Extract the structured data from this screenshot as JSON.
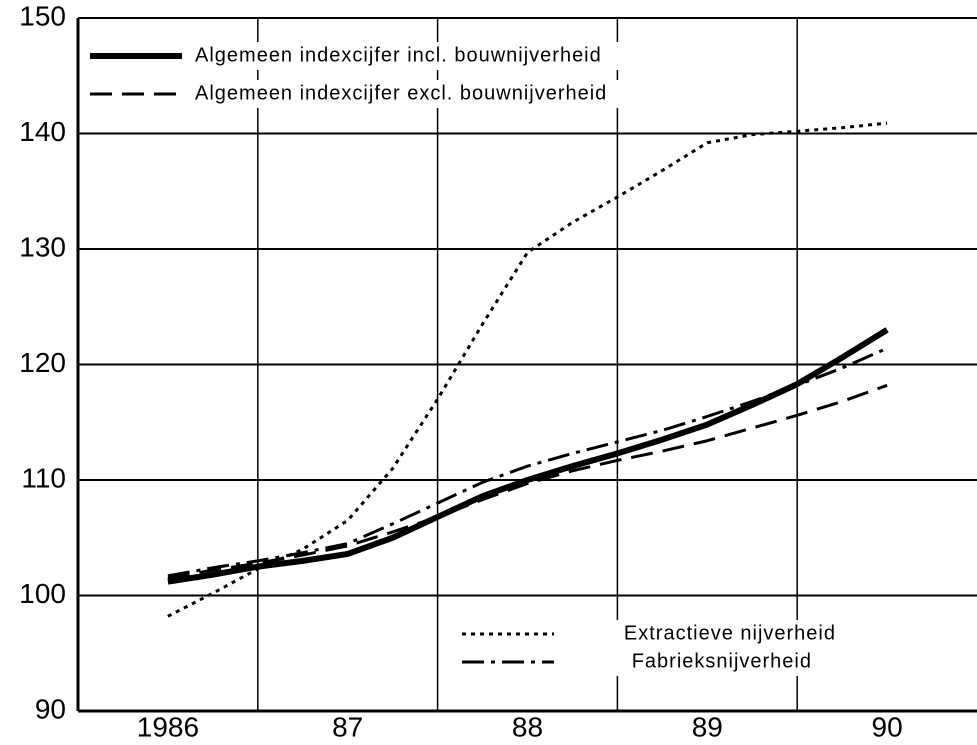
{
  "chart_data": {
    "type": "line",
    "x": [
      1986,
      1986.25,
      1986.5,
      1986.75,
      1987,
      1987.25,
      1987.5,
      1987.75,
      1988,
      1988.25,
      1988.5,
      1988.75,
      1989,
      1989.25,
      1989.5,
      1989.75,
      1990
    ],
    "series": [
      {
        "name": "Algemeen indexcijfer incl. bouwnijverheid",
        "color": "#000000",
        "dash": "solid",
        "width": 6,
        "values": [
          101.2,
          101.8,
          102.5,
          103,
          103.6,
          105,
          106.8,
          108.6,
          110,
          111.2,
          112.3,
          113.5,
          114.8,
          116.5,
          118.3,
          120.6,
          123
        ]
      },
      {
        "name": "Algemeen indexcijfer excl. bouwnijverheid",
        "color": "#000000",
        "dash": "dashed",
        "width": 3,
        "values": [
          101.5,
          102.2,
          102.8,
          103.5,
          104.3,
          105.5,
          106.8,
          108.3,
          109.7,
          110.8,
          111.7,
          112.5,
          113.4,
          114.5,
          115.6,
          116.8,
          118.2
        ]
      },
      {
        "name": "Extractieve nijverheid",
        "color": "#000000",
        "dash": "dotted",
        "width": 3,
        "values": [
          98.2,
          100.2,
          102.3,
          104,
          106.5,
          111,
          117,
          123.5,
          129.7,
          132.3,
          134.5,
          136.8,
          139.2,
          139.9,
          140.2,
          140.5,
          140.9
        ]
      },
      {
        "name": "Fabrieksnijverheid",
        "color": "#000000",
        "dash": "dashdot",
        "width": 3,
        "values": [
          101.7,
          102.4,
          103,
          103.7,
          104.5,
          106.2,
          108,
          109.8,
          111.2,
          112.3,
          113.3,
          114.3,
          115.5,
          116.8,
          118.2,
          119.7,
          121.4
        ]
      }
    ],
    "xlim": [
      1985.5,
      1990.5
    ],
    "xticks": [
      {
        "value": 1986,
        "label": "1986"
      },
      {
        "value": 1987,
        "label": "87"
      },
      {
        "value": 1988,
        "label": "88"
      },
      {
        "value": 1989,
        "label": "89"
      },
      {
        "value": 1990,
        "label": "90"
      }
    ],
    "xgrid": [
      1986.5,
      1987.5,
      1988.5,
      1989.5
    ],
    "ylim": [
      90,
      150
    ],
    "yticks": [
      90,
      100,
      110,
      120,
      130,
      140,
      150
    ],
    "grid": true
  }
}
